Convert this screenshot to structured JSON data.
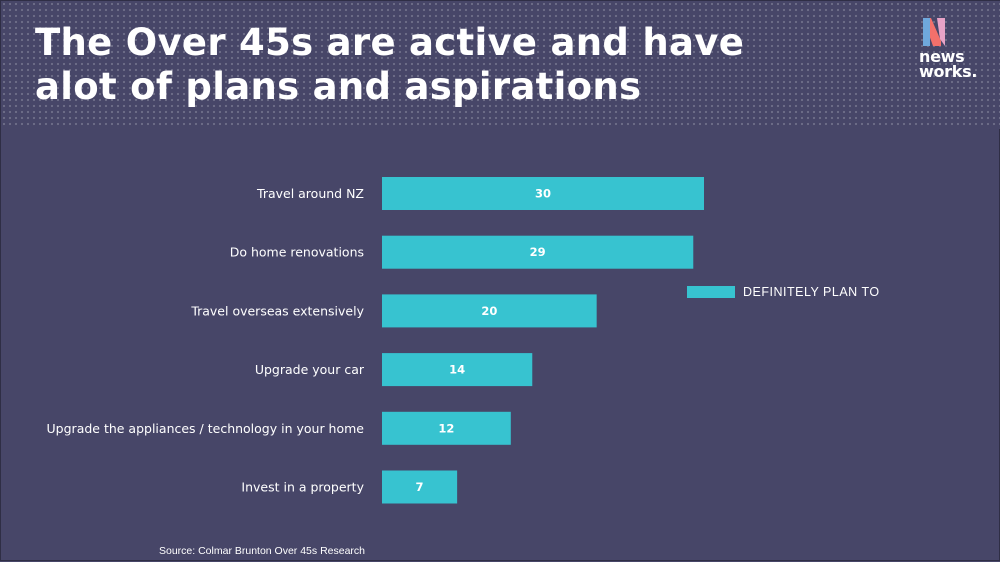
{
  "title": {
    "line1": "The Over 45s are active and have",
    "line2": "alot of plans and aspirations"
  },
  "logo": {
    "line1": "news",
    "line2": "works.",
    "colors": {
      "coral": "#f2706b",
      "blue": "#6fa8dc",
      "pink": "#e8a3c7"
    }
  },
  "source": "Source: Colmar Brunton Over 45s Research",
  "colors": {
    "background": "#474668",
    "bar": "#37c3d0",
    "text": "#ffffff"
  },
  "chart_data": {
    "type": "bar",
    "orientation": "horizontal",
    "categories": [
      "Travel around NZ",
      "Do home renovations",
      "Travel overseas extensively",
      "Upgrade your car",
      "Upgrade the appliances / technology in your home",
      "Invest in a property"
    ],
    "series": [
      {
        "name": "DEFINITELY PLAN TO",
        "values": [
          30,
          29,
          20,
          14,
          12,
          7
        ]
      }
    ],
    "data_labels": true,
    "grid": false,
    "legend_position": "right",
    "xlim": [
      0,
      30
    ]
  }
}
